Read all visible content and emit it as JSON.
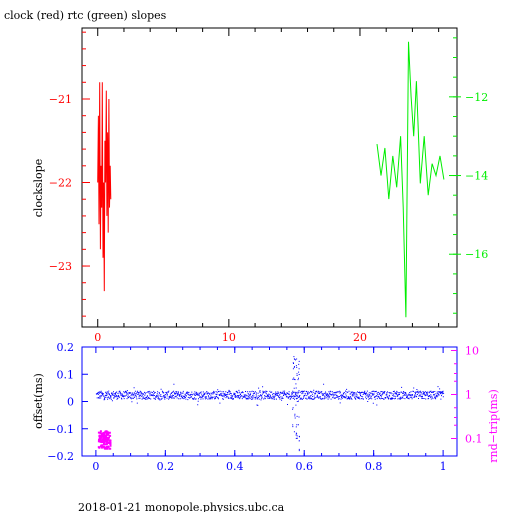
{
  "title": "clock (red) rtc (green) slopes",
  "footer": "2018-01-21 monopole.physics.ubc.ca",
  "colors": {
    "clock": "#ff0000",
    "rtc": "#00ee00",
    "offset": "#0000ff",
    "rndtrip": "#ff00ff",
    "frame": "#000000"
  },
  "chart_data": [
    {
      "type": "line",
      "grid": false,
      "title": "clock (red) rtc (green) slopes",
      "ylabel": "clockslope",
      "xlim": [
        -1.2,
        27.4
      ],
      "x_ticks": [
        0,
        10,
        20
      ],
      "x_tick_labels": [
        "0",
        "10",
        "20"
      ],
      "ylim_left": [
        -23.73,
        -20.15
      ],
      "y_ticks_left": [
        -21,
        -22,
        -23
      ],
      "y_tick_labels_left": [
        "−21",
        "−22",
        "−23"
      ],
      "ylim_right": [
        -17.85,
        -10.25
      ],
      "y_ticks_right": [
        -12,
        -14,
        -16
      ],
      "y_tick_labels_right": [
        "−12",
        "−14",
        "−16"
      ],
      "series": [
        {
          "name": "clock",
          "axis": "left",
          "x": [
            0.0,
            0.05,
            0.1,
            0.15,
            0.2,
            0.25,
            0.3,
            0.35,
            0.4,
            0.45,
            0.5,
            0.55,
            0.6,
            0.65,
            0.7,
            0.75,
            0.8,
            0.85,
            0.9,
            0.95,
            1.0
          ],
          "y": [
            -22.0,
            -21.2,
            -22.5,
            -20.8,
            -22.8,
            -21.8,
            -22.3,
            -20.8,
            -22.9,
            -22.0,
            -23.3,
            -21.5,
            -22.0,
            -20.9,
            -22.4,
            -21.4,
            -22.6,
            -21.0,
            -22.3,
            -21.8,
            -22.2
          ]
        },
        {
          "name": "rtc",
          "axis": "right",
          "x": [
            21.3,
            21.6,
            21.9,
            22.2,
            22.5,
            22.8,
            23.1,
            23.3,
            23.5,
            23.7,
            23.9,
            24.1,
            24.3,
            24.6,
            24.9,
            25.2,
            25.5,
            25.8,
            26.1,
            26.4
          ],
          "y": [
            -13.2,
            -14.0,
            -13.3,
            -14.6,
            -13.5,
            -14.3,
            -13.0,
            -14.8,
            -17.6,
            -10.6,
            -12.0,
            -13.0,
            -11.6,
            -14.2,
            -13.0,
            -14.5,
            -13.7,
            -14.0,
            -13.5,
            -14.1
          ]
        }
      ]
    },
    {
      "type": "scatter",
      "grid": false,
      "xlabel": "",
      "ylabel": "offset(ms)",
      "ylabel_right": "rnd−trip(ms)",
      "xlim": [
        -0.04,
        1.04
      ],
      "x_ticks": [
        0,
        0.2,
        0.4,
        0.6,
        0.8,
        1
      ],
      "x_tick_labels": [
        "0",
        "0.2",
        "0.4",
        "0.6",
        "0.8",
        "1"
      ],
      "ylim": [
        -0.2,
        0.2
      ],
      "y_ticks": [
        0.2,
        0.1,
        0,
        -0.1,
        -0.2
      ],
      "y_tick_labels": [
        "0.2",
        "0.1",
        "0",
        "−0.1",
        "−0.2"
      ],
      "y_right_log": true,
      "y_right_ticks": [
        10,
        1,
        0.1
      ],
      "y_right_tick_labels": [
        "10",
        "1",
        "0.1"
      ],
      "series": [
        {
          "name": "offset",
          "band_center_ms": 0.025,
          "band_halfwidth_ms": 0.015,
          "spike": {
            "x": 0.575,
            "y_min_ms": -0.18,
            "y_max_ms": 0.17
          }
        },
        {
          "name": "rnd-trip",
          "x_range": [
            0.005,
            0.04
          ],
          "y_min_ms": -0.17,
          "y_max_ms": -0.105
        }
      ]
    }
  ]
}
